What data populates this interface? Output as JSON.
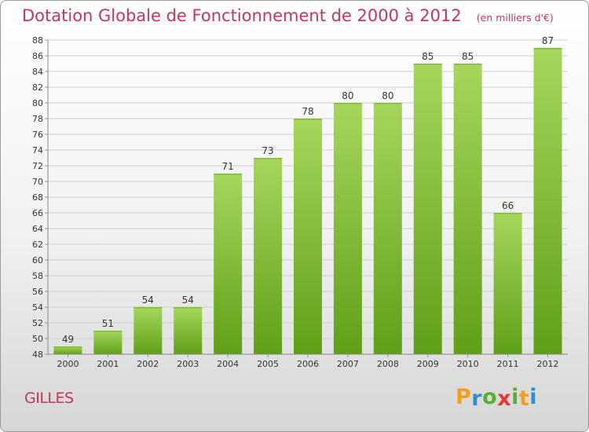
{
  "title": "Dotation Globale de Fonctionnement de 2000 à 2012",
  "unit_note": "(en milliers d'€)",
  "commune": "GILLES",
  "brand": {
    "letters": [
      "P",
      "r",
      "o",
      "x",
      "i",
      "t",
      "i"
    ],
    "colors": [
      "#f0a020",
      "#2f8fd0",
      "#56b030",
      "#e8382e",
      "#56b030",
      "#f0a020",
      "#2f8fd0"
    ]
  },
  "colors": {
    "title": "#c8345a",
    "bar_light": "#a6d65c",
    "bar_dark": "#5fa017",
    "grid": "#cfcfcf",
    "text": "#333333"
  },
  "chart_data": {
    "type": "bar",
    "categories": [
      "2000",
      "2001",
      "2002",
      "2003",
      "2004",
      "2005",
      "2006",
      "2007",
      "2008",
      "2009",
      "2010",
      "2011",
      "2012"
    ],
    "values": [
      49,
      51,
      54,
      54,
      71,
      73,
      78,
      80,
      80,
      85,
      85,
      66,
      87
    ],
    "ylim": [
      48,
      88
    ],
    "ytick_step": 2,
    "grid": true,
    "legend": "none"
  }
}
